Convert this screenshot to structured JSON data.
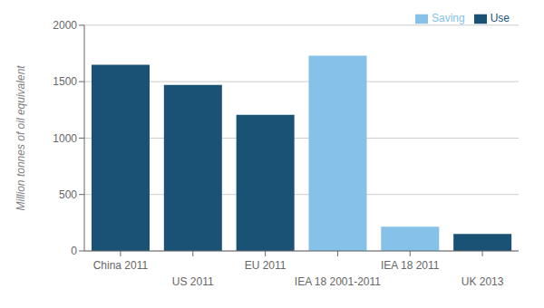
{
  "chart_data": {
    "type": "bar",
    "categories": [
      "China 2011",
      "US 2011",
      "EU 2011",
      "IEA 18 2001-2011",
      "IEA 18 2011",
      "UK 2013"
    ],
    "series": [
      {
        "name": "Use",
        "color": "#1a5276",
        "values": [
          1650,
          1470,
          1205,
          null,
          null,
          150
        ]
      },
      {
        "name": "Saving",
        "color": "#85c1e9",
        "values": [
          null,
          null,
          null,
          1730,
          215,
          null
        ]
      }
    ],
    "y_label": "Million tonnes of oil equivalent",
    "ylim": [
      0,
      2000
    ],
    "yticks": [
      0,
      500,
      1000,
      1500,
      2000
    ],
    "grid": true,
    "legend": "upper right"
  }
}
